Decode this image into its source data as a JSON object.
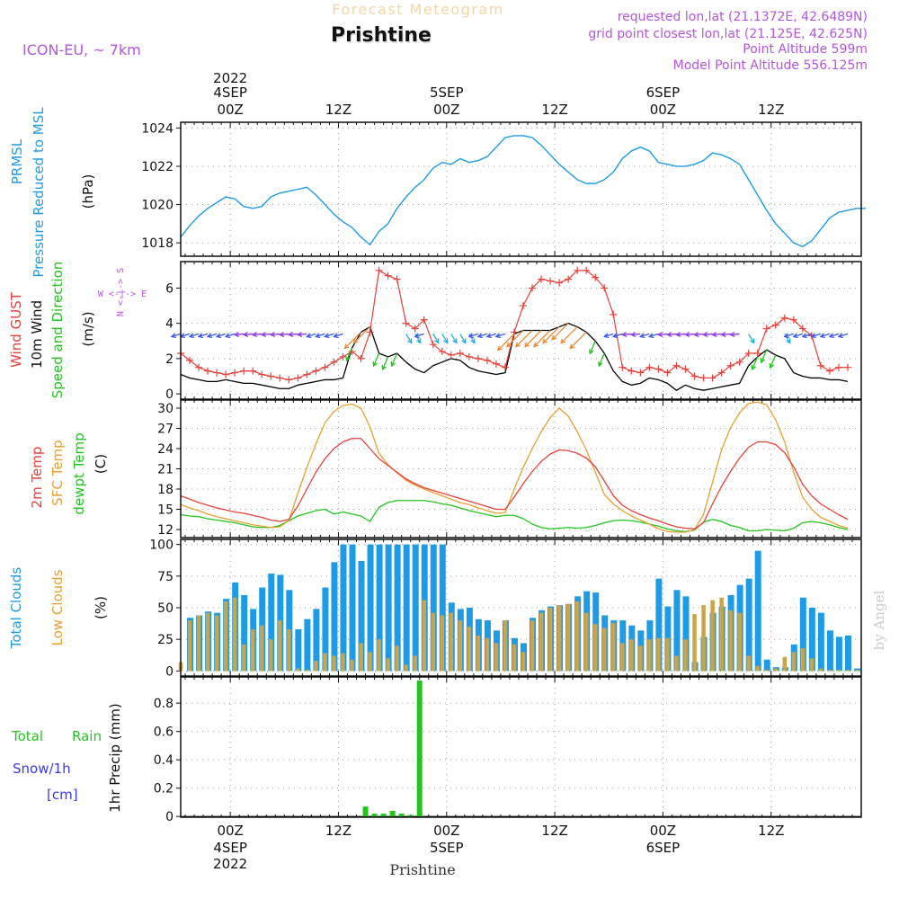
{
  "header": {
    "top_title": "Forecast Meteogram",
    "location": "Prishtine",
    "model": "ICON-EU, ~ 7km",
    "requested": "requested lon,lat (21.1372E, 42.6489N)",
    "grid_point": "grid point closest lon,lat (21.125E, 42.625N)",
    "point_altitude": "Point Altitude 599m",
    "model_altitude": "Model Point Altitude 556.125m",
    "watermark": "by Angel",
    "footer": "Prishtine"
  },
  "colors": {
    "pressure": "#1e9be6",
    "gust": "#e8403a",
    "wind": "#000000",
    "temp2m": "#e8403a",
    "sfc": "#e6a033",
    "dewpt": "#22c41e",
    "total_clouds": "#1e9be6",
    "low_clouds": "#caa44a",
    "rain": "#22c41e",
    "snow": "#3a3ae6",
    "label_purple": "#b455e0"
  },
  "time_axis": {
    "top_labels": [
      {
        "t": 0,
        "line1": "2022",
        "line2": "4SEP",
        "line3": "00Z"
      },
      {
        "t": 12,
        "line1": "",
        "line2": "",
        "line3": "12Z"
      },
      {
        "t": 24,
        "line1": "",
        "line2": "5SEP",
        "line3": "00Z"
      },
      {
        "t": 36,
        "line1": "",
        "line2": "",
        "line3": "12Z"
      },
      {
        "t": 48,
        "line1": "",
        "line2": "6SEP",
        "line3": "00Z"
      },
      {
        "t": 60,
        "line1": "",
        "line2": "",
        "line3": "12Z"
      }
    ],
    "bottom_labels": [
      {
        "t": 0,
        "line1": "00Z",
        "line2": "4SEP",
        "line3": "2022"
      },
      {
        "t": 12,
        "line1": "12Z",
        "line2": "",
        "line3": ""
      },
      {
        "t": 24,
        "line1": "00Z",
        "line2": "5SEP",
        "line3": ""
      },
      {
        "t": 36,
        "line1": "12Z",
        "line2": "",
        "line3": ""
      },
      {
        "t": 48,
        "line1": "00Z",
        "line2": "6SEP",
        "line3": ""
      },
      {
        "t": 60,
        "line1": "12Z",
        "line2": "",
        "line3": ""
      }
    ]
  },
  "panel_labels": {
    "pressure": {
      "l1": "PRMSL",
      "l2": "Pressure Reduced to MSL",
      "unit": "(hPa)"
    },
    "wind": {
      "l1": "Wind GUST",
      "l2": "10m Wind",
      "l3": "Speed and Direction",
      "unit": "(m/s)",
      "compass_ns": "N <-|-> S",
      "compass_we": "W <-|-> E"
    },
    "temp": {
      "l1": "2m Temp",
      "l2": "SFC Temp",
      "l3": "dewpt Temp",
      "unit": "(C)"
    },
    "clouds": {
      "l1": "Total Clouds",
      "l2": "Low Clouds",
      "unit": "(%)"
    },
    "precip": {
      "l1": "Total",
      "l1b": "Rain",
      "l2": "Snow/1h",
      "l3": "[cm]",
      "unit": "1hr Precip (mm)"
    }
  },
  "chart_data": [
    {
      "type": "line",
      "name": "pressure",
      "title": "PRMSL Pressure Reduced to MSL",
      "ylabel": "(hPa)",
      "ylim": [
        1017.3,
        1024.3
      ],
      "yticks": [
        1018,
        1020,
        1022,
        1024
      ],
      "x_hours": [
        -5.5,
        -4.5,
        -3.5,
        -2.5,
        -1.5,
        -0.5,
        0.5,
        1.5,
        2.5,
        3.5,
        4.5,
        5.5,
        6.5,
        7.5,
        8.5,
        9.5,
        10.5,
        11.5,
        12.5,
        13.5,
        14.5,
        15.5,
        16.5,
        17.5,
        18.5,
        19.5,
        20.5,
        21.5,
        22.5,
        23.5,
        24.5,
        25.5,
        26.5,
        27.5,
        28.5,
        29.5,
        30.5,
        31.5,
        32.5,
        33.5,
        34.5,
        35.5,
        36.5,
        37.5,
        38.5,
        39.5,
        40.5,
        41.5,
        42.5,
        43.5,
        44.5,
        45.5,
        46.5,
        47.5,
        48.5,
        49.5,
        50.5,
        51.5,
        52.5,
        53.5,
        54.5,
        55.5,
        56.5,
        57.5,
        58.5,
        59.5,
        60.5,
        61.5,
        62.5,
        63.5,
        64.5,
        65.5,
        66.5,
        67.5,
        68.5,
        69.5,
        70.5
      ],
      "series": [
        {
          "name": "PRMSL",
          "color_key": "pressure",
          "values": [
            1018.3,
            1018.9,
            1019.4,
            1019.8,
            1020.1,
            1020.4,
            1020.3,
            1019.9,
            1019.8,
            1019.9,
            1020.4,
            1020.6,
            1020.7,
            1020.8,
            1020.9,
            1020.5,
            1020.0,
            1019.5,
            1019.1,
            1018.8,
            1018.3,
            1017.9,
            1018.6,
            1019.0,
            1019.8,
            1020.4,
            1020.9,
            1021.3,
            1021.9,
            1022.2,
            1022.1,
            1022.4,
            1022.2,
            1022.3,
            1022.5,
            1023.0,
            1023.5,
            1023.6,
            1023.6,
            1023.5,
            1023.1,
            1022.6,
            1022.1,
            1021.7,
            1021.3,
            1021.1,
            1021.1,
            1021.3,
            1021.7,
            1022.4,
            1022.8,
            1023.0,
            1022.8,
            1022.2,
            1022.1,
            1022.0,
            1022.0,
            1022.1,
            1022.3,
            1022.7,
            1022.6,
            1022.4,
            1022.1,
            1021.3,
            1020.5,
            1019.7,
            1019.0,
            1018.5,
            1018.0,
            1017.8,
            1018.1,
            1018.7,
            1019.3,
            1019.6,
            1019.7,
            1019.8,
            1019.8
          ]
        }
      ]
    },
    {
      "type": "line",
      "name": "wind",
      "title": "Wind GUST / 10m Wind Speed and Direction",
      "ylabel": "(m/s)",
      "ylim": [
        -0.3,
        7.5
      ],
      "yticks": [
        0,
        2,
        4,
        6
      ],
      "series": [
        {
          "name": "Wind GUST",
          "color_key": "gust",
          "markers": "plus",
          "values": [
            2.3,
            1.9,
            1.5,
            1.3,
            1.2,
            1.1,
            1.2,
            1.3,
            1.3,
            1.1,
            1.0,
            0.9,
            0.8,
            0.9,
            1.1,
            1.3,
            1.5,
            1.8,
            2.1,
            2.4,
            2.0,
            3.5,
            7.0,
            6.7,
            6.5,
            4.0,
            3.7,
            4.2,
            2.8,
            2.4,
            2.2,
            2.3,
            2.1,
            2.0,
            1.9,
            1.7,
            1.5,
            3.5,
            5.0,
            6.0,
            6.5,
            6.4,
            6.3,
            6.5,
            7.0,
            7.0,
            6.6,
            6.0,
            4.5,
            1.5,
            1.3,
            1.2,
            1.5,
            1.4,
            1.2,
            1.6,
            1.4,
            1.0,
            0.9,
            0.9,
            1.2,
            1.6,
            1.8,
            2.3,
            2.3,
            3.7,
            3.9,
            4.3,
            4.2,
            3.7,
            3.3,
            1.6,
            1.3,
            1.5,
            1.5
          ]
        },
        {
          "name": "10m Wind",
          "color_key": "wind",
          "values": [
            1.1,
            0.9,
            0.8,
            0.7,
            0.7,
            0.8,
            0.7,
            0.6,
            0.6,
            0.5,
            0.4,
            0.3,
            0.3,
            0.5,
            0.6,
            0.7,
            0.8,
            0.8,
            0.9,
            2.6,
            3.5,
            3.8,
            2.3,
            2.1,
            2.3,
            1.8,
            1.4,
            1.2,
            1.6,
            1.8,
            2.0,
            1.9,
            1.5,
            1.3,
            1.2,
            1.1,
            1.2,
            3.4,
            3.6,
            3.6,
            3.6,
            3.6,
            3.8,
            4.0,
            3.8,
            3.5,
            3.0,
            2.3,
            1.3,
            0.7,
            0.5,
            0.6,
            0.9,
            0.8,
            0.6,
            0.2,
            0.5,
            0.3,
            0.2,
            0.3,
            0.4,
            0.5,
            0.6,
            1.6,
            2.1,
            2.5,
            2.2,
            2.0,
            1.2,
            1.0,
            0.9,
            0.9,
            0.8,
            0.8,
            0.7
          ]
        }
      ]
    },
    {
      "type": "line",
      "name": "temperature",
      "title": "2m Temp / SFC Temp / dewpt Temp",
      "ylabel": "(C)",
      "ylim": [
        10.8,
        31.2
      ],
      "yticks": [
        12,
        15,
        18,
        21,
        24,
        27,
        30
      ],
      "series": [
        {
          "name": "2m Temp",
          "color_key": "temp2m",
          "values": [
            17.0,
            16.5,
            16.0,
            15.6,
            15.2,
            14.9,
            14.6,
            14.4,
            14.1,
            13.8,
            13.4,
            13.2,
            13.5,
            15.5,
            18.0,
            20.5,
            22.5,
            24.0,
            25.0,
            25.5,
            25.5,
            24.0,
            22.5,
            21.5,
            20.5,
            19.5,
            18.8,
            18.2,
            17.8,
            17.4,
            17.0,
            16.6,
            16.2,
            15.8,
            15.4,
            15.0,
            15.0,
            16.8,
            18.8,
            20.6,
            22.1,
            23.2,
            23.8,
            23.7,
            23.3,
            22.6,
            21.3,
            19.2,
            17.0,
            15.6,
            14.8,
            14.2,
            13.7,
            13.3,
            12.8,
            12.4,
            12.2,
            12.1,
            13.0,
            15.8,
            18.4,
            20.6,
            22.6,
            24.2,
            25.0,
            25.0,
            24.6,
            23.4,
            21.3,
            18.7,
            17.0,
            15.8,
            15.0,
            14.2,
            13.5
          ]
        },
        {
          "name": "SFC Temp",
          "color_key": "sfc",
          "values": [
            15.7,
            15.2,
            14.8,
            14.3,
            13.9,
            13.6,
            13.3,
            13.0,
            12.7,
            12.5,
            12.3,
            12.4,
            13.3,
            17.4,
            21.2,
            24.7,
            27.8,
            29.5,
            30.4,
            30.6,
            30.0,
            27.2,
            23.3,
            21.6,
            20.4,
            19.3,
            18.6,
            18.0,
            17.5,
            17.0,
            16.5,
            16.0,
            15.7,
            15.2,
            14.8,
            14.4,
            14.5,
            18.0,
            21.2,
            24.0,
            26.5,
            28.6,
            30.0,
            28.8,
            26.5,
            23.8,
            20.5,
            17.2,
            15.8,
            14.8,
            14.0,
            13.4,
            12.8,
            12.1,
            11.7,
            11.6,
            11.6,
            12.0,
            14.2,
            19.0,
            23.8,
            27.1,
            29.3,
            30.7,
            30.9,
            30.5,
            28.3,
            25.0,
            20.5,
            16.8,
            15.0,
            13.8,
            13.2,
            12.6,
            12.2
          ]
        },
        {
          "name": "dewpt Temp",
          "color_key": "dewpt",
          "values": [
            14.2,
            14.0,
            13.9,
            13.6,
            13.4,
            13.2,
            13.0,
            12.7,
            12.4,
            12.3,
            12.3,
            12.6,
            13.3,
            14.0,
            14.4,
            14.8,
            15.0,
            14.3,
            14.6,
            14.3,
            14.0,
            13.2,
            15.3,
            16.0,
            16.3,
            16.3,
            16.3,
            16.3,
            16.1,
            15.8,
            15.6,
            15.2,
            14.8,
            14.5,
            14.2,
            13.9,
            14.1,
            14.1,
            13.6,
            12.8,
            12.3,
            12.1,
            12.2,
            12.3,
            12.2,
            12.3,
            12.6,
            13.0,
            13.3,
            13.4,
            13.3,
            13.1,
            12.8,
            12.5,
            12.1,
            11.8,
            11.7,
            11.9,
            13.1,
            13.5,
            13.2,
            12.6,
            12.3,
            11.8,
            11.8,
            12.0,
            11.9,
            11.8,
            12.2,
            13.0,
            13.2,
            13.0,
            12.7,
            12.3,
            12.0
          ]
        }
      ]
    },
    {
      "type": "bar",
      "name": "clouds",
      "title": "Total Clouds / Low Clouds",
      "ylabel": "(%)",
      "ylim": [
        -4,
        104
      ],
      "yticks": [
        0,
        25,
        50,
        75,
        100
      ],
      "series": [
        {
          "name": "Total Clouds",
          "color_key": "total_clouds",
          "values": [
            0,
            42,
            44,
            47,
            46,
            57,
            70,
            60,
            49,
            66,
            77,
            76,
            64,
            33,
            41,
            49,
            66,
            86,
            100,
            100,
            87,
            100,
            100,
            100,
            100,
            100,
            100,
            100,
            100,
            100,
            54,
            49,
            50,
            41,
            40,
            32,
            40,
            26,
            22,
            42,
            48,
            51,
            52,
            53,
            59,
            63,
            62,
            44,
            40,
            40,
            36,
            32,
            40,
            73,
            51,
            64,
            59,
            7,
            27,
            46,
            51,
            60,
            68,
            73,
            95,
            9,
            3,
            3,
            21,
            58,
            50,
            46,
            32,
            27,
            28,
            2
          ]
        },
        {
          "name": "Low Clouds",
          "color_key": "low_clouds",
          "values": [
            7,
            40,
            44,
            46,
            44,
            55,
            58,
            21,
            33,
            36,
            25,
            40,
            33,
            2,
            1,
            8,
            14,
            12,
            14,
            9,
            22,
            15,
            25,
            10,
            20,
            5,
            12,
            56,
            46,
            44,
            46,
            40,
            35,
            28,
            26,
            22,
            40,
            21,
            15,
            40,
            46,
            50,
            52,
            53,
            55,
            46,
            37,
            34,
            38,
            22,
            25,
            20,
            25,
            26,
            26,
            12,
            25,
            45,
            52,
            56,
            58,
            48,
            46,
            12,
            4,
            1,
            2,
            11,
            15,
            18,
            10,
            2,
            1,
            1,
            1,
            1
          ]
        }
      ]
    },
    {
      "type": "bar",
      "name": "precipitation",
      "title": "Total Rain / Snow 1h",
      "ylabel": "1hr Precip (mm)",
      "ylim": [
        -0.005,
        0.985
      ],
      "yticks": [
        0,
        0.2,
        0.4,
        0.6,
        0.8
      ],
      "bars": [
        {
          "t": 15,
          "rain": 0.07
        },
        {
          "t": 16,
          "rain": 0.02
        },
        {
          "t": 17,
          "rain": 0.02
        },
        {
          "t": 18,
          "rain": 0.04
        },
        {
          "t": 19,
          "rain": 0.02
        },
        {
          "t": 20,
          "rain": 0.01
        },
        {
          "t": 21,
          "rain": 0.96
        }
      ]
    }
  ]
}
